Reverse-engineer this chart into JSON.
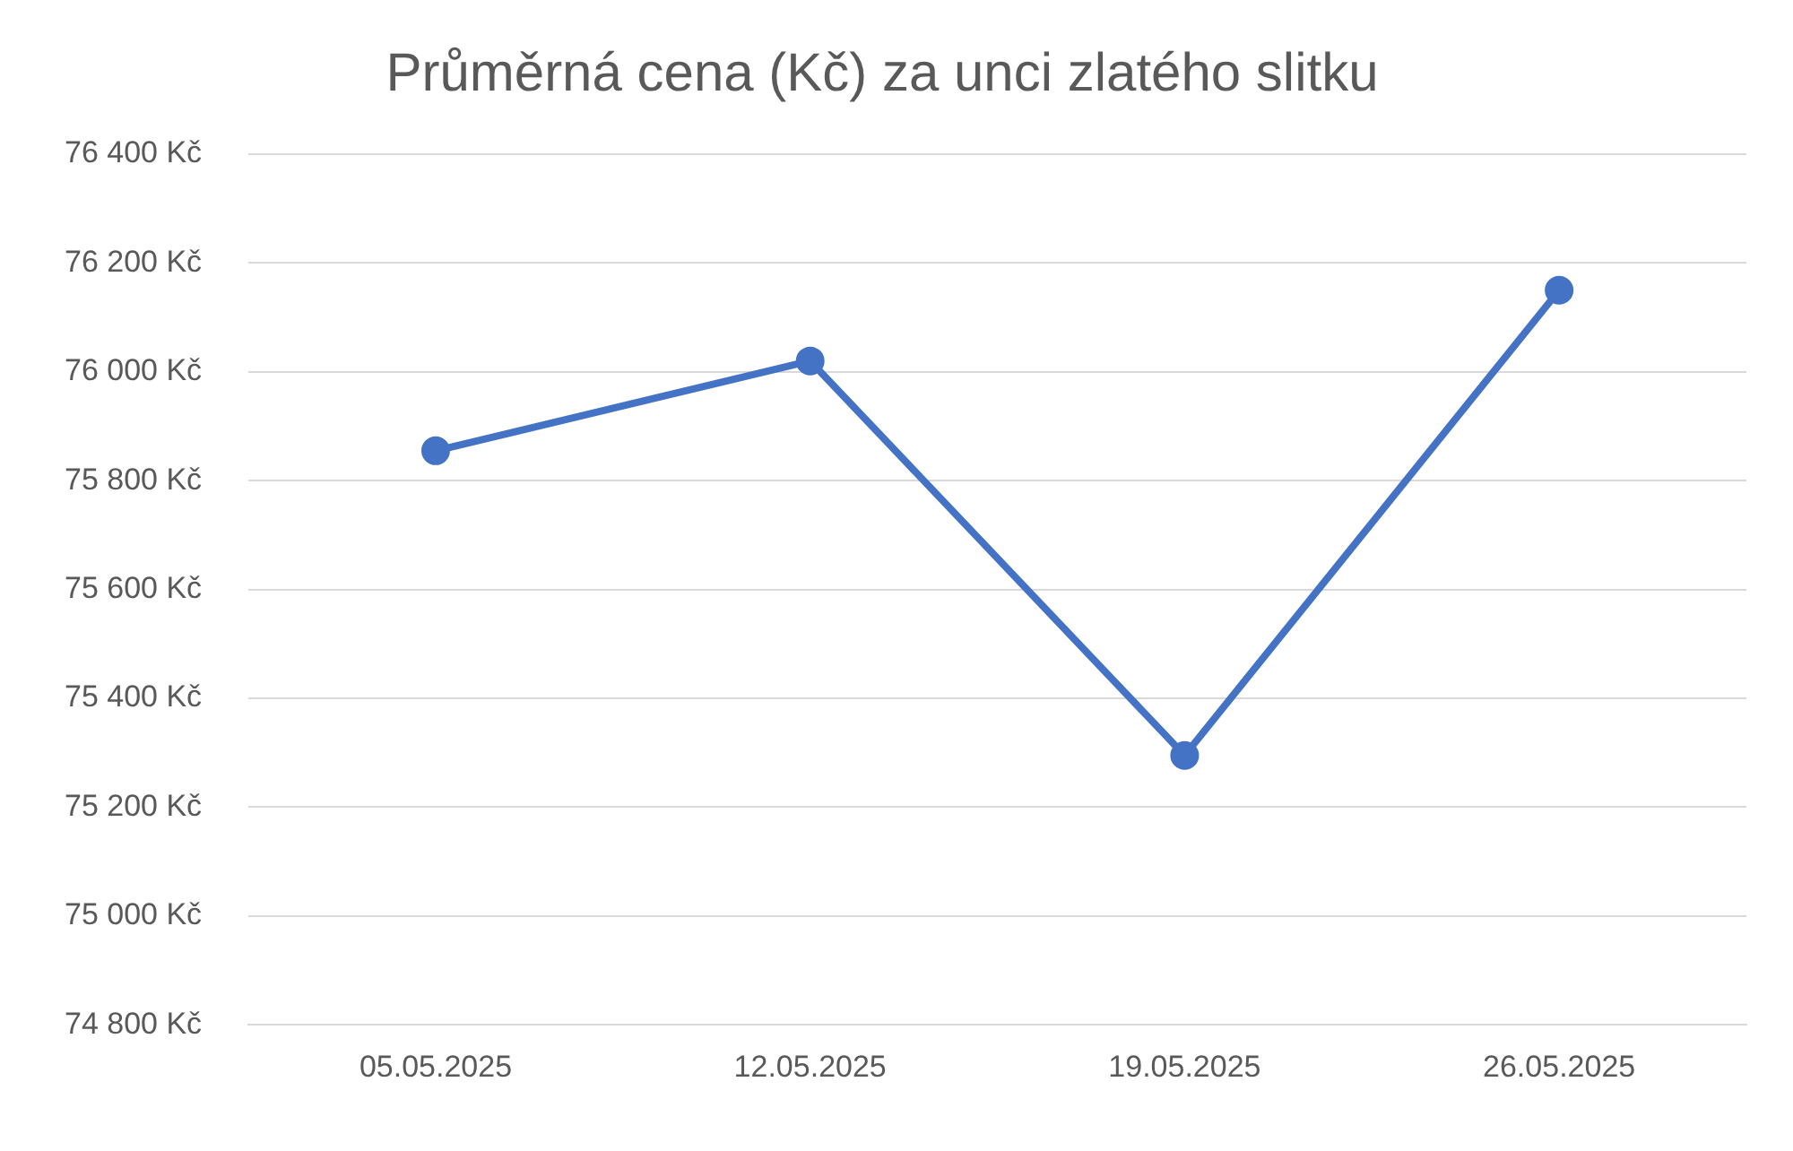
{
  "chart_data": {
    "type": "line",
    "title": "Průměrná cena (Kč) za unci zlatého slitku",
    "categories": [
      "05.05.2025",
      "12.05.2025",
      "19.05.2025",
      "26.05.2025"
    ],
    "series": [
      {
        "color": "#4472c4",
        "values": [
          75855,
          76020,
          75295,
          76150
        ]
      }
    ],
    "ylim": [
      74800,
      76400
    ],
    "yticks": [
      {
        "value": 74800,
        "label": "74 800 Kč"
      },
      {
        "value": 75000,
        "label": "75 000 Kč"
      },
      {
        "value": 75200,
        "label": "75 200 Kč"
      },
      {
        "value": 75400,
        "label": "75 400 Kč"
      },
      {
        "value": 75600,
        "label": "75 600 Kč"
      },
      {
        "value": 75800,
        "label": "75 800 Kč"
      },
      {
        "value": 76000,
        "label": "76 000 Kč"
      },
      {
        "value": 76200,
        "label": "76 200 Kč"
      },
      {
        "value": 76400,
        "label": "76 400 Kč"
      }
    ],
    "grid": "y",
    "legend": false,
    "marker": "circle",
    "line_style": "solid"
  }
}
